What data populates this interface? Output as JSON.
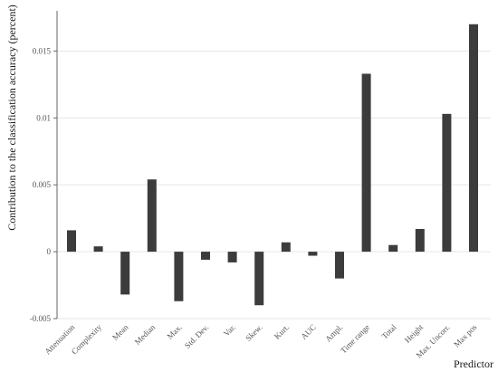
{
  "chart_data": {
    "type": "bar",
    "categories": [
      "Attenuation",
      "Complexity",
      "Mean",
      "Median",
      "Max.",
      "Std. Dev.",
      "Var.",
      "Skew.",
      "Kurt.",
      "AUC",
      "Ampl.",
      "Time range",
      "Total",
      "Height",
      "Max. Uncorr.",
      "Max pos"
    ],
    "values": [
      0.0016,
      0.0004,
      -0.0032,
      0.0054,
      -0.0037,
      -0.0006,
      -0.0008,
      -0.004,
      0.0007,
      -0.0003,
      -0.002,
      0.0133,
      0.0005,
      0.0017,
      0.0103,
      0.017
    ],
    "xlabel": "Predictor",
    "ylabel": "Contribution to the classification accuracy (percent)",
    "ylim": [
      -0.005,
      0.018
    ],
    "yticks": [
      -0.005,
      0,
      0.005,
      0.01,
      0.015
    ],
    "ytick_labels": [
      "-0.005",
      "0",
      "0.005",
      "0.01",
      "0.015"
    ],
    "grid": true,
    "bar_color": "#3c3c3c"
  }
}
